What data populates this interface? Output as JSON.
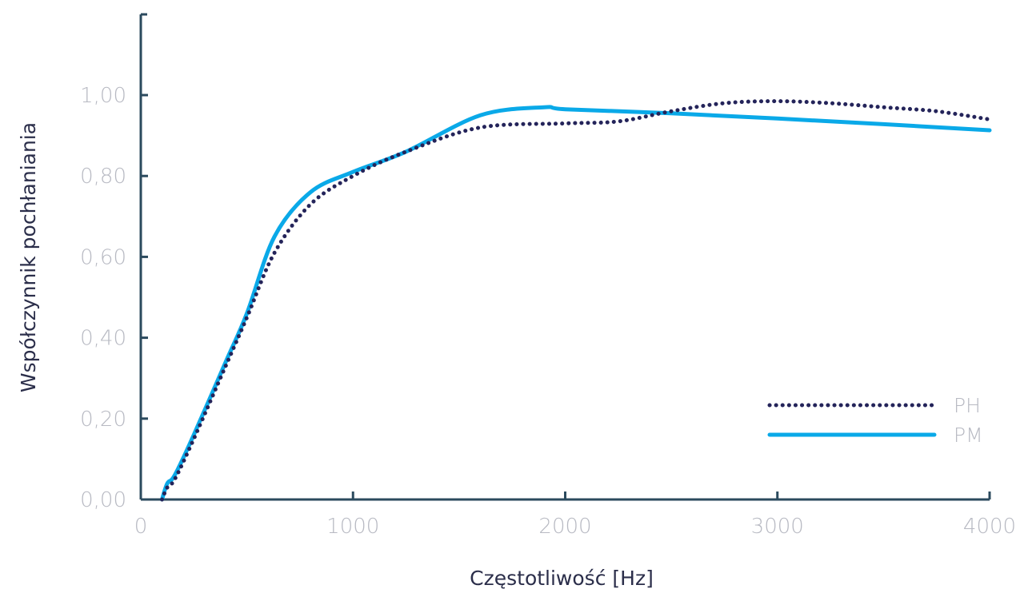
{
  "chart_data": {
    "type": "line",
    "title": "",
    "xlabel": "Częstotliwość [Hz]",
    "ylabel": "Współczynnik pochłaniania",
    "xlim": [
      0,
      4000
    ],
    "ylim": [
      0,
      1.2
    ],
    "x_ticks": [
      0,
      1000,
      2000,
      3000,
      4000
    ],
    "x_tick_labels": [
      "0",
      "1000",
      "2000",
      "3000",
      "4000"
    ],
    "y_ticks": [
      0,
      0.2,
      0.4,
      0.6,
      0.8,
      1.0
    ],
    "y_tick_labels": [
      "0,00",
      "0,20",
      "0,40",
      "0,60",
      "0,80",
      "1,00"
    ],
    "grid": false,
    "legend_position": "bottom-right",
    "series": [
      {
        "name": "PH",
        "style": "dotted",
        "color": "#24245a",
        "points": [
          [
            100,
            0.0
          ],
          [
            125,
            0.03
          ],
          [
            160,
            0.05
          ],
          [
            250,
            0.15
          ],
          [
            400,
            0.33
          ],
          [
            500,
            0.45
          ],
          [
            630,
            0.61
          ],
          [
            800,
            0.73
          ],
          [
            1000,
            0.8
          ],
          [
            1250,
            0.86
          ],
          [
            1600,
            0.92
          ],
          [
            2000,
            0.93
          ],
          [
            2250,
            0.935
          ],
          [
            2500,
            0.96
          ],
          [
            2750,
            0.98
          ],
          [
            3000,
            0.985
          ],
          [
            3250,
            0.98
          ],
          [
            3500,
            0.97
          ],
          [
            3750,
            0.96
          ],
          [
            4000,
            0.94
          ]
        ]
      },
      {
        "name": "PM",
        "style": "solid",
        "color": "#0aa9e8",
        "points": [
          [
            100,
            0.0
          ],
          [
            125,
            0.04
          ],
          [
            160,
            0.06
          ],
          [
            250,
            0.16
          ],
          [
            400,
            0.34
          ],
          [
            500,
            0.46
          ],
          [
            630,
            0.65
          ],
          [
            800,
            0.76
          ],
          [
            1000,
            0.81
          ],
          [
            1250,
            0.86
          ],
          [
            1600,
            0.95
          ],
          [
            1900,
            0.97
          ],
          [
            2000,
            0.965
          ],
          [
            2500,
            0.955
          ],
          [
            3000,
            0.942
          ],
          [
            3500,
            0.928
          ],
          [
            4000,
            0.913
          ]
        ]
      }
    ]
  }
}
